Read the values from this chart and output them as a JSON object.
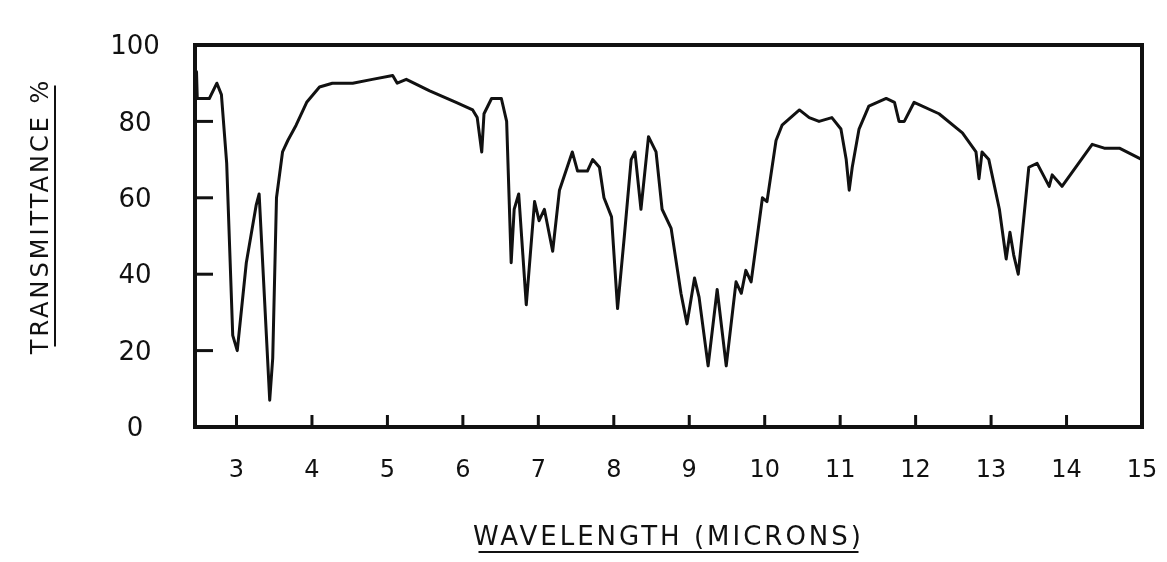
{
  "chart_data": {
    "type": "line",
    "xlabel": "WAVELENGTH (MICRONS)",
    "ylabel": "TRANSMITTANCE %",
    "xlim": [
      2.45,
      15
    ],
    "ylim": [
      0,
      100
    ],
    "xticks": [
      3,
      4,
      5,
      6,
      7,
      8,
      9,
      10,
      11,
      12,
      13,
      14,
      15
    ],
    "yticks": [
      0,
      20,
      40,
      60,
      80,
      100
    ],
    "grid": false,
    "series": [
      {
        "color": "#111111",
        "x": [
          2.47,
          2.48,
          2.64,
          2.74,
          2.8,
          2.87,
          2.95,
          3.01,
          3.13,
          3.26,
          3.3,
          3.37,
          3.44,
          3.48,
          3.53,
          3.61,
          3.68,
          3.79,
          3.93,
          4.1,
          4.27,
          4.54,
          4.8,
          5.07,
          5.13,
          5.25,
          5.56,
          5.91,
          6.13,
          6.19,
          6.25,
          6.28,
          6.38,
          6.51,
          6.58,
          6.64,
          6.68,
          6.74,
          6.84,
          6.95,
          7.01,
          7.08,
          7.19,
          7.28,
          7.45,
          7.52,
          7.65,
          7.72,
          7.81,
          7.87,
          7.97,
          8.05,
          8.14,
          8.23,
          8.28,
          8.36,
          8.46,
          8.56,
          8.64,
          8.76,
          8.89,
          8.97,
          9.07,
          9.13,
          9.25,
          9.37,
          9.49,
          9.62,
          9.69,
          9.75,
          9.82,
          9.97,
          10.03,
          10.15,
          10.23,
          10.46,
          10.59,
          10.72,
          10.89,
          11.01,
          11.08,
          11.12,
          11.16,
          11.25,
          11.38,
          11.61,
          11.72,
          11.78,
          11.85,
          11.98,
          12.31,
          12.62,
          12.8,
          12.84,
          12.88,
          12.97,
          13.11,
          13.2,
          13.25,
          13.3,
          13.36,
          13.5,
          13.61,
          13.77,
          13.81,
          13.94,
          14.34,
          14.5,
          14.7,
          15
        ],
        "values": [
          93,
          86,
          86,
          90,
          87,
          69,
          24,
          20,
          43,
          58,
          61,
          34,
          7,
          18,
          60,
          72,
          75,
          79,
          85,
          89,
          90,
          90,
          91,
          92,
          90,
          91,
          88,
          85,
          83,
          81,
          72,
          82,
          86,
          86,
          80,
          43,
          57,
          61,
          32,
          59,
          54,
          57,
          46,
          62,
          72,
          67,
          67,
          70,
          68,
          60,
          55,
          31,
          50,
          70,
          72,
          57,
          76,
          72,
          57,
          52,
          35,
          27,
          39,
          34,
          16,
          36,
          16,
          38,
          35,
          41,
          38,
          60,
          59,
          75,
          79,
          83,
          81,
          80,
          81,
          78,
          70,
          62,
          68,
          78,
          84,
          86,
          85,
          80,
          80,
          85,
          82,
          77,
          72,
          65,
          72,
          70,
          57,
          44,
          51,
          45,
          40,
          68,
          69,
          63,
          66,
          63,
          74,
          73,
          73,
          70
        ]
      }
    ]
  }
}
